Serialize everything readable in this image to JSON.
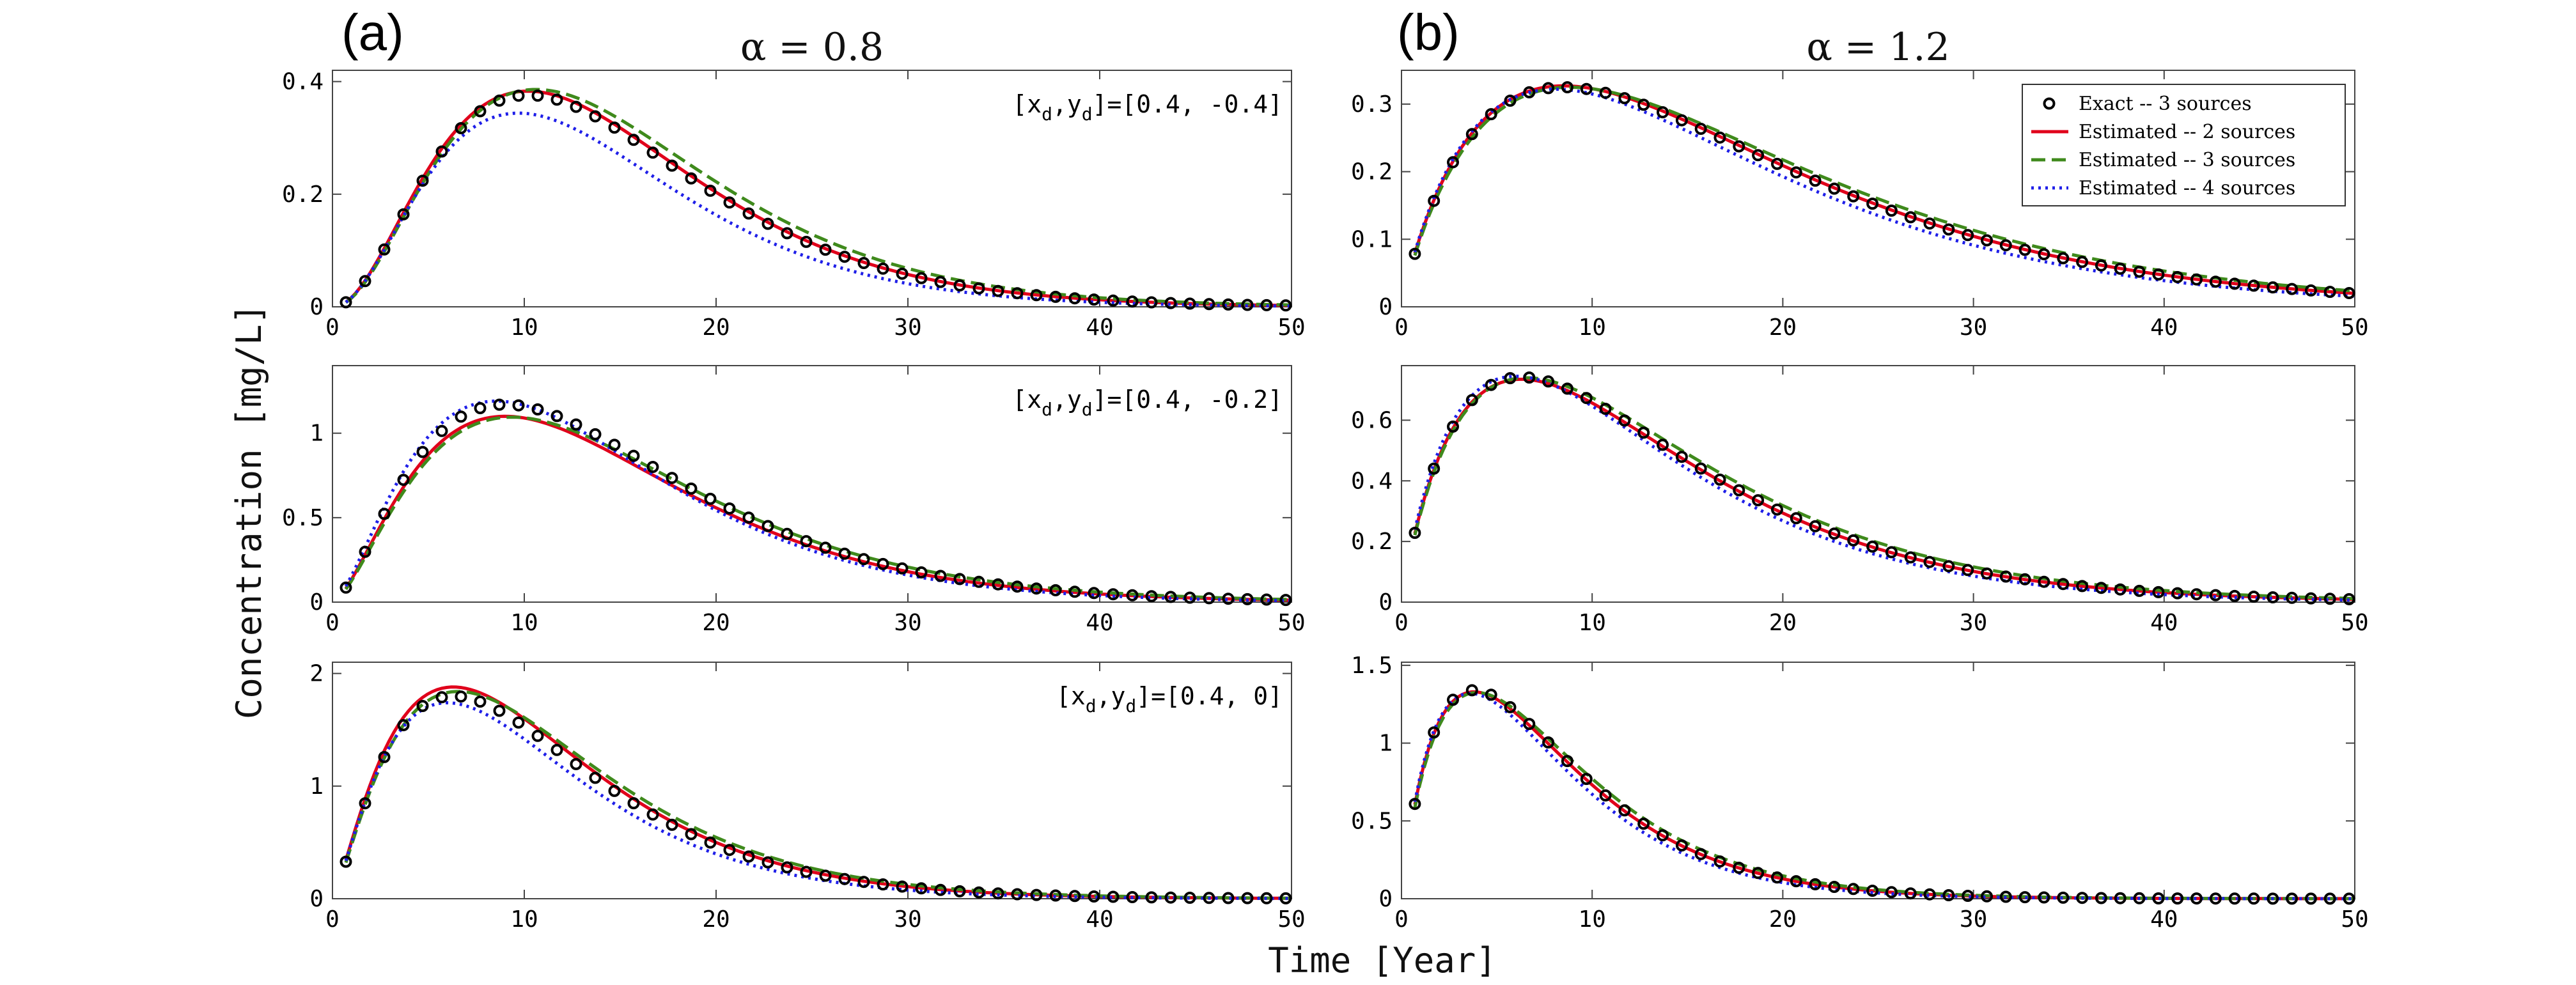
{
  "figure": {
    "panel_a_label": "(a)",
    "panel_b_label": "(b)",
    "xlabel": "Time [Year]",
    "ylabel": "Concentration [mg/L]"
  },
  "chart_data": [
    {
      "type": "line",
      "column": 0,
      "row": 0,
      "title": "α = 0.8",
      "annotation": {
        "pre": "[x",
        "sub1": "d",
        "mid": ",y",
        "sub2": "d",
        "post": "]=[0.4, -0.4]"
      },
      "xlim": [
        0,
        50
      ],
      "ylim": [
        0,
        0.42
      ],
      "xticks": [
        0,
        10,
        20,
        30,
        40,
        50
      ],
      "yticks": [
        0,
        0.2,
        0.4
      ],
      "peak_time": 10.2,
      "shape": 2.2,
      "amplitudes": {
        "exact": 0.376,
        "est2": 0.383,
        "est3": 0.386,
        "est4": 0.344
      }
    },
    {
      "type": "line",
      "column": 0,
      "row": 1,
      "annotation": {
        "pre": "[x",
        "sub1": "d",
        "mid": ",y",
        "sub2": "d",
        "post": "]=[0.4, -0.2]"
      },
      "xlim": [
        0,
        50
      ],
      "ylim": [
        0,
        1.4
      ],
      "xticks": [
        0,
        10,
        20,
        30,
        40,
        50
      ],
      "yticks": [
        0,
        0.5,
        1
      ],
      "peak_time": 9.0,
      "shape": 1.6,
      "amplitudes": {
        "exact": 1.17,
        "est2": 1.1,
        "est3": 1.095,
        "est4": 1.19
      }
    },
    {
      "type": "line",
      "column": 0,
      "row": 2,
      "annotation": {
        "pre": "[x",
        "sub1": "d",
        "mid": ",y",
        "sub2": "d",
        "post": "]=[0.4, 0]"
      },
      "xlim": [
        0,
        50
      ],
      "ylim": [
        0,
        2.1
      ],
      "xticks": [
        0,
        10,
        20,
        30,
        40,
        50
      ],
      "yticks": [
        0,
        1,
        2
      ],
      "peak_time": 6.3,
      "shape": 1.3,
      "amplitudes": {
        "exact": 1.8,
        "est2": 1.88,
        "est3": 1.84,
        "est4": 1.74
      }
    },
    {
      "type": "line",
      "column": 1,
      "row": 0,
      "title": "α = 1.2",
      "xlim": [
        0,
        50
      ],
      "ylim": [
        0,
        0.35
      ],
      "xticks": [
        0,
        10,
        20,
        30,
        40,
        50
      ],
      "yticks": [
        0,
        0.1,
        0.2,
        0.3
      ],
      "peak_time": 8.5,
      "shape": 0.9,
      "amplitudes": {
        "exact": 0.325,
        "est2": 0.327,
        "est3": 0.325,
        "est4": 0.322
      },
      "legend": {
        "position": "top-right",
        "entries": [
          "Exact -- 3 sources",
          "Estimated -- 2 sources",
          "Estimated -- 3 sources",
          "Estimated -- 4 sources"
        ]
      }
    },
    {
      "type": "line",
      "column": 1,
      "row": 1,
      "xlim": [
        0,
        50
      ],
      "ylim": [
        0,
        0.78
      ],
      "xticks": [
        0,
        10,
        20,
        30,
        40,
        50
      ],
      "yticks": [
        0,
        0.2,
        0.4,
        0.6
      ],
      "peak_time": 6.3,
      "shape": 0.9,
      "amplitudes": {
        "exact": 0.742,
        "est2": 0.735,
        "est3": 0.74,
        "est4": 0.745
      }
    },
    {
      "type": "line",
      "column": 1,
      "row": 2,
      "xlim": [
        0,
        50
      ],
      "ylim": [
        0,
        1.52
      ],
      "xticks": [
        0,
        10,
        20,
        30,
        40,
        50
      ],
      "yticks": [
        0,
        0.5,
        1,
        1.5
      ],
      "peak_time": 3.8,
      "shape": 0.9,
      "amplitudes": {
        "exact": 1.34,
        "est2": 1.33,
        "est3": 1.325,
        "est4": 1.32
      }
    }
  ],
  "series_styles": {
    "exact": {
      "color": "#000000",
      "marker": "circle"
    },
    "est2": {
      "color": "#e0001b",
      "dash": "solid"
    },
    "est3": {
      "color": "#3f8a1c",
      "dash": "dashed"
    },
    "est4": {
      "color": "#1f1fe8",
      "dash": "dotted"
    }
  }
}
